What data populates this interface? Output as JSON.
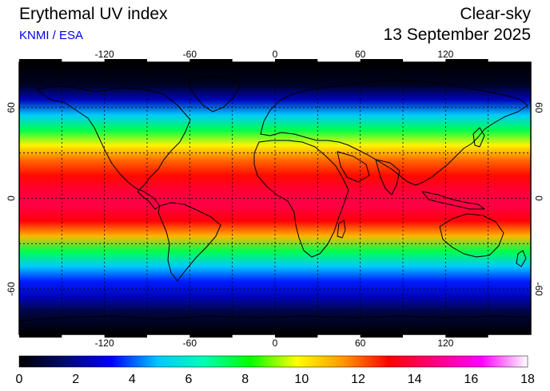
{
  "header": {
    "title": "Erythemal UV index",
    "source": "KNMI / ESA",
    "mode": "Clear-sky",
    "date": "13 September 2025"
  },
  "axes": {
    "lon_ticks": [
      "-120",
      "-60",
      "0",
      "60",
      "120"
    ],
    "lat_ticks": [
      "60",
      "0",
      "-60"
    ],
    "lon_range": [
      -180,
      180
    ],
    "lat_range": [
      -90,
      90
    ],
    "grid": "dashed, every 30 degrees"
  },
  "colorbar": {
    "labels": [
      "0",
      "2",
      "4",
      "6",
      "8",
      "10",
      "12",
      "14",
      "16",
      "18"
    ],
    "range": [
      0,
      18
    ],
    "colors": [
      "#000000",
      "#000a6e",
      "#0000ff",
      "#00c8ff",
      "#00ffb4",
      "#00ff00",
      "#ffff00",
      "#ff9a00",
      "#ff0000",
      "#ff0080",
      "#ff00ff",
      "#ffffff"
    ]
  },
  "chart_data": {
    "type": "heatmap",
    "title": "Erythemal UV index",
    "variable": "UV index",
    "value_range": [
      0,
      18
    ],
    "latitude_profile": [
      {
        "lat": 90,
        "uv": 0.0
      },
      {
        "lat": 75,
        "uv": 0.5
      },
      {
        "lat": 65,
        "uv": 2.5
      },
      {
        "lat": 55,
        "uv": 5.0
      },
      {
        "lat": 45,
        "uv": 7.5
      },
      {
        "lat": 35,
        "uv": 10.0
      },
      {
        "lat": 25,
        "uv": 12.0
      },
      {
        "lat": 15,
        "uv": 13.0
      },
      {
        "lat": 5,
        "uv": 13.8
      },
      {
        "lat": -5,
        "uv": 14.0
      },
      {
        "lat": -15,
        "uv": 13.2
      },
      {
        "lat": -25,
        "uv": 11.0
      },
      {
        "lat": -35,
        "uv": 7.5
      },
      {
        "lat": -45,
        "uv": 5.0
      },
      {
        "lat": -55,
        "uv": 3.5
      },
      {
        "lat": -65,
        "uv": 2.5
      },
      {
        "lat": -75,
        "uv": 1.0
      },
      {
        "lat": -90,
        "uv": 0.0
      }
    ]
  }
}
